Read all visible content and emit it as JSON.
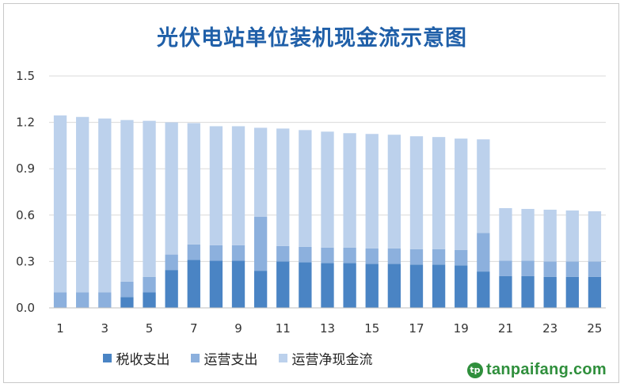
{
  "chart_data": {
    "type": "bar",
    "stacked": true,
    "title": "光伏电站单位装机现金流示意图",
    "categories": [
      "1",
      "2",
      "3",
      "4",
      "5",
      "6",
      "7",
      "8",
      "9",
      "10",
      "11",
      "12",
      "13",
      "14",
      "15",
      "16",
      "17",
      "18",
      "19",
      "20",
      "21",
      "22",
      "23",
      "24",
      "25"
    ],
    "x_tick_labels": [
      "1",
      "",
      "3",
      "",
      "5",
      "",
      "7",
      "",
      "9",
      "",
      "11",
      "",
      "13",
      "",
      "15",
      "",
      "17",
      "",
      "19",
      "",
      "21",
      "",
      "23",
      "",
      "25"
    ],
    "y_ticks": [
      "0.0",
      "0.3",
      "0.6",
      "0.9",
      "1.2",
      "1.5"
    ],
    "ylim": [
      0,
      1.5
    ],
    "grid": true,
    "legend_position": "bottom",
    "series": [
      {
        "name": "税收支出",
        "color": "#4a84c4",
        "values": [
          0,
          0,
          0,
          0.07,
          0.1,
          0.245,
          0.31,
          0.305,
          0.305,
          0.24,
          0.3,
          0.295,
          0.29,
          0.29,
          0.285,
          0.285,
          0.28,
          0.28,
          0.275,
          0.235,
          0.205,
          0.205,
          0.2,
          0.2,
          0.2
        ]
      },
      {
        "name": "运营支出",
        "color": "#8cb0dd",
        "values": [
          0.1,
          0.1,
          0.1,
          0.1,
          0.1,
          0.1,
          0.1,
          0.1,
          0.1,
          0.35,
          0.1,
          0.1,
          0.1,
          0.1,
          0.1,
          0.1,
          0.1,
          0.1,
          0.1,
          0.25,
          0.1,
          0.1,
          0.1,
          0.1,
          0.1
        ]
      },
      {
        "name": "运营净现金流",
        "color": "#bcd1ec",
        "values": [
          1.145,
          1.135,
          1.125,
          1.045,
          1.01,
          0.855,
          0.785,
          0.77,
          0.77,
          0.575,
          0.76,
          0.755,
          0.75,
          0.74,
          0.74,
          0.735,
          0.73,
          0.725,
          0.72,
          0.605,
          0.34,
          0.335,
          0.335,
          0.33,
          0.325
        ]
      }
    ]
  },
  "watermark": {
    "mark": "tp",
    "text": "tanpaifang.com"
  }
}
